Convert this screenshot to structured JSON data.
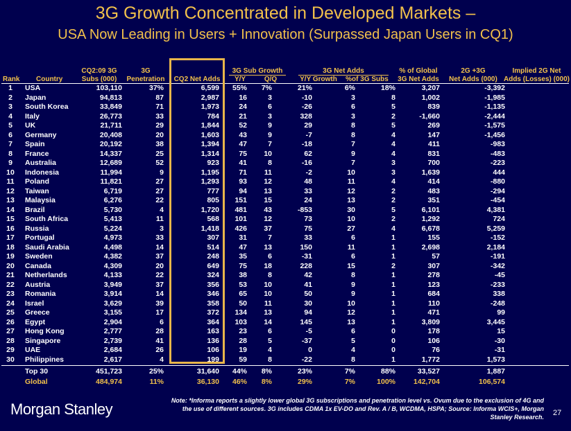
{
  "title": "3G Growth Concentrated in Developed Markets –",
  "subtitle": "USA Now Leading in Users + Innovation (Surpassed Japan Users in CQ1)",
  "headers": {
    "rank": "Rank",
    "country": "Country",
    "subs_l1": "CQ2:09 3G",
    "subs_l2": "Subs (000)",
    "pen_l1": "3G",
    "pen_l2": "Penetration",
    "netadds": "CQ2 Net Adds",
    "subgrowth": "3G Sub Growth",
    "yy": "Y/Y",
    "qq": "Q/Q",
    "netadds_group": "3G Net Adds",
    "yy_growth": "Y/Y Growth",
    "pct_subs": "%of 3G Subs",
    "global_l1": "% of Global",
    "global_l2": "3G Net Adds",
    "g23_l1": "2G +3G",
    "g23_l2": "Net Adds (000)",
    "imp_l1": "Implied 2G Net",
    "imp_l2": "Adds (Losses) (000)"
  },
  "rows": [
    {
      "rank": "1",
      "country": "USA",
      "subs": "103,110",
      "pen": "37%",
      "netadds": "6,599",
      "yy": "55%",
      "qq": "7%",
      "yyg": "21%",
      "pcts": "6%",
      "glob": "18%",
      "g23": "3,207",
      "imp": "-3,392"
    },
    {
      "rank": "2",
      "country": "Japan",
      "subs": "94,813",
      "pen": "87",
      "netadds": "2,987",
      "yy": "16",
      "qq": "3",
      "yyg": "-10",
      "pcts": "3",
      "glob": "8",
      "g23": "1,002",
      "imp": "-1,985"
    },
    {
      "rank": "3",
      "country": "South Korea",
      "subs": "33,849",
      "pen": "71",
      "netadds": "1,973",
      "yy": "24",
      "qq": "6",
      "yyg": "-26",
      "pcts": "6",
      "glob": "5",
      "g23": "839",
      "imp": "-1,135"
    },
    {
      "rank": "4",
      "country": "Italy",
      "subs": "26,773",
      "pen": "33",
      "netadds": "784",
      "yy": "21",
      "qq": "3",
      "yyg": "328",
      "pcts": "3",
      "glob": "2",
      "g23": "-1,660",
      "imp": "-2,444"
    },
    {
      "rank": "5",
      "country": "UK",
      "subs": "21,711",
      "pen": "29",
      "netadds": "1,844",
      "yy": "52",
      "qq": "9",
      "yyg": "29",
      "pcts": "8",
      "glob": "5",
      "g23": "269",
      "imp": "-1,575"
    },
    {
      "rank": "6",
      "country": "Germany",
      "subs": "20,408",
      "pen": "20",
      "netadds": "1,603",
      "yy": "43",
      "qq": "9",
      "yyg": "-7",
      "pcts": "8",
      "glob": "4",
      "g23": "147",
      "imp": "-1,456"
    },
    {
      "rank": "7",
      "country": "Spain",
      "subs": "20,192",
      "pen": "38",
      "netadds": "1,394",
      "yy": "47",
      "qq": "7",
      "yyg": "-18",
      "pcts": "7",
      "glob": "4",
      "g23": "411",
      "imp": "-983"
    },
    {
      "rank": "8",
      "country": "France",
      "subs": "14,337",
      "pen": "25",
      "netadds": "1,314",
      "yy": "75",
      "qq": "10",
      "yyg": "62",
      "pcts": "9",
      "glob": "4",
      "g23": "831",
      "imp": "-483"
    },
    {
      "rank": "9",
      "country": "Australia",
      "subs": "12,689",
      "pen": "52",
      "netadds": "923",
      "yy": "41",
      "qq": "8",
      "yyg": "-16",
      "pcts": "7",
      "glob": "3",
      "g23": "700",
      "imp": "-223"
    },
    {
      "rank": "10",
      "country": "Indonesia",
      "subs": "11,994",
      "pen": "9",
      "netadds": "1,195",
      "yy": "71",
      "qq": "11",
      "yyg": "-2",
      "pcts": "10",
      "glob": "3",
      "g23": "1,639",
      "imp": "444"
    },
    {
      "rank": "11",
      "country": "Poland",
      "subs": "11,821",
      "pen": "27",
      "netadds": "1,293",
      "yy": "93",
      "qq": "12",
      "yyg": "48",
      "pcts": "11",
      "glob": "4",
      "g23": "414",
      "imp": "-880"
    },
    {
      "rank": "12",
      "country": "Taiwan",
      "subs": "6,719",
      "pen": "27",
      "netadds": "777",
      "yy": "94",
      "qq": "13",
      "yyg": "33",
      "pcts": "12",
      "glob": "2",
      "g23": "483",
      "imp": "-294"
    },
    {
      "rank": "13",
      "country": "Malaysia",
      "subs": "6,276",
      "pen": "22",
      "netadds": "805",
      "yy": "151",
      "qq": "15",
      "yyg": "24",
      "pcts": "13",
      "glob": "2",
      "g23": "351",
      "imp": "-454"
    },
    {
      "rank": "14",
      "country": "Brazil",
      "subs": "5,730",
      "pen": "4",
      "netadds": "1,720",
      "yy": "481",
      "qq": "43",
      "yyg": "-853",
      "pcts": "30",
      "glob": "5",
      "g23": "6,101",
      "imp": "4,381"
    },
    {
      "rank": "15",
      "country": "South Africa",
      "subs": "5,413",
      "pen": "11",
      "netadds": "568",
      "yy": "101",
      "qq": "12",
      "yyg": "73",
      "pcts": "10",
      "glob": "2",
      "g23": "1,292",
      "imp": "724"
    },
    {
      "rank": "16",
      "country": "Russia",
      "subs": "5,224",
      "pen": "3",
      "netadds": "1,418",
      "yy": "426",
      "qq": "37",
      "yyg": "75",
      "pcts": "27",
      "glob": "4",
      "g23": "6,678",
      "imp": "5,259"
    },
    {
      "rank": "17",
      "country": "Portugal",
      "subs": "4,973",
      "pen": "33",
      "netadds": "307",
      "yy": "31",
      "qq": "7",
      "yyg": "33",
      "pcts": "6",
      "glob": "1",
      "g23": "155",
      "imp": "-152"
    },
    {
      "rank": "18",
      "country": "Saudi Arabia",
      "subs": "4,498",
      "pen": "14",
      "netadds": "514",
      "yy": "47",
      "qq": "13",
      "yyg": "150",
      "pcts": "11",
      "glob": "1",
      "g23": "2,698",
      "imp": "2,184"
    },
    {
      "rank": "19",
      "country": "Sweden",
      "subs": "4,382",
      "pen": "37",
      "netadds": "248",
      "yy": "35",
      "qq": "6",
      "yyg": "-31",
      "pcts": "6",
      "glob": "1",
      "g23": "57",
      "imp": "-191"
    },
    {
      "rank": "20",
      "country": "Canada",
      "subs": "4,309",
      "pen": "20",
      "netadds": "649",
      "yy": "75",
      "qq": "18",
      "yyg": "228",
      "pcts": "15",
      "glob": "2",
      "g23": "307",
      "imp": "-342"
    },
    {
      "rank": "21",
      "country": "Netherlands",
      "subs": "4,133",
      "pen": "22",
      "netadds": "324",
      "yy": "38",
      "qq": "8",
      "yyg": "42",
      "pcts": "8",
      "glob": "1",
      "g23": "278",
      "imp": "-45"
    },
    {
      "rank": "22",
      "country": "Austria",
      "subs": "3,949",
      "pen": "37",
      "netadds": "356",
      "yy": "53",
      "qq": "10",
      "yyg": "41",
      "pcts": "9",
      "glob": "1",
      "g23": "123",
      "imp": "-233"
    },
    {
      "rank": "23",
      "country": "Romania",
      "subs": "3,914",
      "pen": "14",
      "netadds": "346",
      "yy": "65",
      "qq": "10",
      "yyg": "50",
      "pcts": "9",
      "glob": "1",
      "g23": "684",
      "imp": "338"
    },
    {
      "rank": "24",
      "country": "Israel",
      "subs": "3,629",
      "pen": "39",
      "netadds": "358",
      "yy": "50",
      "qq": "11",
      "yyg": "30",
      "pcts": "10",
      "glob": "1",
      "g23": "110",
      "imp": "-248"
    },
    {
      "rank": "25",
      "country": "Greece",
      "subs": "3,155",
      "pen": "17",
      "netadds": "372",
      "yy": "134",
      "qq": "13",
      "yyg": "94",
      "pcts": "12",
      "glob": "1",
      "g23": "471",
      "imp": "99"
    },
    {
      "rank": "26",
      "country": "Egypt",
      "subs": "2,904",
      "pen": "6",
      "netadds": "364",
      "yy": "103",
      "qq": "14",
      "yyg": "145",
      "pcts": "13",
      "glob": "1",
      "g23": "3,809",
      "imp": "3,445"
    },
    {
      "rank": "27",
      "country": "Hong Kong",
      "subs": "2,777",
      "pen": "28",
      "netadds": "163",
      "yy": "23",
      "qq": "6",
      "yyg": "-5",
      "pcts": "6",
      "glob": "0",
      "g23": "178",
      "imp": "15"
    },
    {
      "rank": "28",
      "country": "Singapore",
      "subs": "2,739",
      "pen": "41",
      "netadds": "136",
      "yy": "28",
      "qq": "5",
      "yyg": "-37",
      "pcts": "5",
      "glob": "0",
      "g23": "106",
      "imp": "-30"
    },
    {
      "rank": "29",
      "country": "UAE",
      "subs": "2,684",
      "pen": "26",
      "netadds": "106",
      "yy": "19",
      "qq": "4",
      "yyg": "0",
      "pcts": "4",
      "glob": "0",
      "g23": "76",
      "imp": "-31"
    },
    {
      "rank": "30",
      "country": "Philippines",
      "subs": "2,617",
      "pen": "4",
      "netadds": "199",
      "yy": "59",
      "qq": "8",
      "yyg": "-22",
      "pcts": "8",
      "glob": "1",
      "g23": "1,772",
      "imp": "1,573"
    }
  ],
  "totals": [
    {
      "label": "Top 30",
      "subs": "451,723",
      "pen": "25%",
      "netadds": "31,640",
      "yy": "44%",
      "qq": "8%",
      "yyg": "23%",
      "pcts": "7%",
      "glob": "88%",
      "g23": "33,527",
      "imp": "1,887"
    },
    {
      "label": "Global",
      "subs": "484,974",
      "pen": "11%",
      "netadds": "36,130",
      "yy": "46%",
      "qq": "8%",
      "yyg": "29%",
      "pcts": "7%",
      "glob": "100%",
      "g23": "142,704",
      "imp": "106,574"
    }
  ],
  "logo": "Morgan Stanley",
  "note": "Note: *Informa reports a slightly lower global 3G subscriptions and penetration level vs. Ovum due to the exclusion of 4G and the use of different sources. 3G includes CDMA 1x EV-DO and Rev. A / B, WCDMA, HSPA; Source: Informa WCIS+, Morgan Stanley Research.",
  "page_number": "27",
  "colors": {
    "background": "#00004e",
    "accent": "#f2c14b",
    "text": "#ffffff"
  }
}
